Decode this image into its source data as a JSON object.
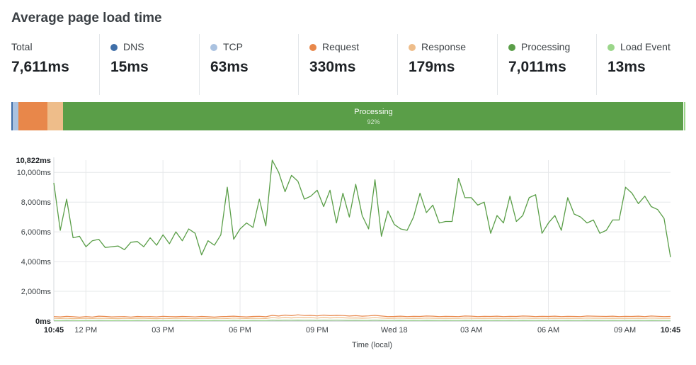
{
  "title": "Average page load time",
  "metrics": [
    {
      "label": "Total",
      "value": "7,611ms",
      "color": null
    },
    {
      "label": "DNS",
      "value": "15ms",
      "color": "#3f6ea8"
    },
    {
      "label": "TCP",
      "value": "63ms",
      "color": "#aac2e0"
    },
    {
      "label": "Request",
      "value": "330ms",
      "color": "#e8874a"
    },
    {
      "label": "Response",
      "value": "179ms",
      "color": "#eebd8a"
    },
    {
      "label": "Processing",
      "value": "7,011ms",
      "color": "#5a9e48"
    },
    {
      "label": "Load Event",
      "value": "13ms",
      "color": "#9bd68a"
    }
  ],
  "breakdown_bar": {
    "label": "Processing",
    "percent_label": "92%"
  },
  "chart_data": {
    "type": "line",
    "ylabel_max": "10,822ms",
    "y_ticks": [
      "0ms",
      "2,000ms",
      "4,000ms",
      "6,000ms",
      "8,000ms",
      "10,000ms"
    ],
    "ylim": [
      0,
      10822
    ],
    "x_ticks": [
      "10:45",
      "12 PM",
      "03 PM",
      "06 PM",
      "09 PM",
      "Wed 18",
      "03 AM",
      "06 AM",
      "09 AM",
      "10:45"
    ],
    "xlabel": "Time (local)",
    "grid": true,
    "series": [
      {
        "color": "#5a9e48",
        "values": [
          9300,
          6100,
          8200,
          5600,
          5700,
          5000,
          5400,
          5500,
          4950,
          5000,
          5050,
          4800,
          5300,
          5350,
          5000,
          5600,
          5100,
          5800,
          5200,
          6000,
          5400,
          6200,
          5900,
          4450,
          5400,
          5100,
          5800,
          9000,
          5500,
          6200,
          6600,
          6300,
          8200,
          6400,
          10822,
          10000,
          8700,
          9800,
          9400,
          8200,
          8400,
          8800,
          7700,
          8800,
          6600,
          8600,
          7000,
          9200,
          7100,
          6200,
          9500,
          5700,
          7400,
          6500,
          6200,
          6100,
          7000,
          8600,
          7300,
          7800,
          6600,
          6700,
          6700,
          9600,
          8300,
          8300,
          7800,
          8000,
          5900,
          7100,
          6600,
          8400,
          6700,
          7100,
          8300,
          8500,
          5900,
          6600,
          7100,
          6100,
          8300,
          7200,
          7000,
          6600,
          6800,
          5900,
          6100,
          6800,
          6800,
          9000,
          8600,
          7900,
          8400,
          7700,
          7500,
          6900,
          4300
        ]
      },
      {
        "color": "#e8874a",
        "values": [
          300,
          280,
          320,
          290,
          260,
          300,
          270,
          330,
          310,
          280,
          290,
          300,
          270,
          310,
          290,
          300,
          280,
          320,
          300,
          290,
          310,
          300,
          280,
          310,
          290,
          270,
          300,
          310,
          330,
          300,
          280,
          310,
          320,
          290,
          380,
          340,
          400,
          360,
          420,
          370,
          380,
          350,
          400,
          360,
          380,
          370,
          340,
          360,
          330,
          350,
          380,
          340,
          300,
          310,
          330,
          300,
          320,
          310,
          340,
          330,
          300,
          320,
          310,
          300,
          340,
          330,
          300,
          320,
          310,
          330,
          300,
          320,
          310,
          340,
          330,
          300,
          320,
          310,
          330,
          300,
          320,
          310,
          300,
          340,
          330,
          320,
          310,
          330,
          300,
          320,
          310,
          330,
          300,
          340,
          320,
          300,
          310
        ]
      },
      {
        "color": "#eebd8a",
        "values": [
          180,
          170,
          190,
          160,
          170,
          180,
          170,
          190,
          180,
          170,
          160,
          180,
          170,
          190,
          180,
          170,
          160,
          180,
          170,
          190,
          180,
          170,
          160,
          180,
          170,
          190,
          180,
          170,
          200,
          180,
          170,
          190,
          180,
          170,
          230,
          200,
          240,
          210,
          250,
          220,
          230,
          200,
          240,
          210,
          230,
          220,
          200,
          210,
          190,
          200,
          230,
          200,
          180,
          190,
          200,
          180,
          190,
          180,
          200,
          190,
          180,
          190,
          180,
          180,
          200,
          190,
          180,
          190,
          180,
          190,
          180,
          190,
          180,
          200,
          190,
          180,
          190,
          180,
          190,
          180,
          190,
          180,
          180,
          200,
          190,
          190,
          180,
          190,
          180,
          190,
          180,
          190,
          180,
          200,
          190,
          180,
          180
        ]
      },
      {
        "color": "#9bd68a",
        "values": [
          40,
          30,
          50,
          35,
          30,
          40,
          35,
          45,
          40,
          30,
          35,
          40,
          30,
          45,
          40,
          35,
          30,
          40,
          35,
          45,
          40,
          35,
          30,
          40,
          35,
          45,
          40,
          35,
          50,
          40,
          35,
          45,
          40,
          35,
          60,
          50,
          60,
          55,
          65,
          55,
          60,
          50,
          60,
          55,
          60,
          55,
          50,
          55,
          45,
          50,
          60,
          50,
          40,
          45,
          50,
          40,
          45,
          40,
          50,
          45,
          40,
          45,
          40,
          40,
          50,
          45,
          40,
          45,
          40,
          45,
          40,
          45,
          40,
          50,
          45,
          40,
          45,
          40,
          45,
          40,
          45,
          40,
          40,
          50,
          45,
          45,
          40,
          45,
          40,
          45,
          40,
          45,
          40,
          50,
          45,
          40,
          40
        ]
      }
    ]
  }
}
